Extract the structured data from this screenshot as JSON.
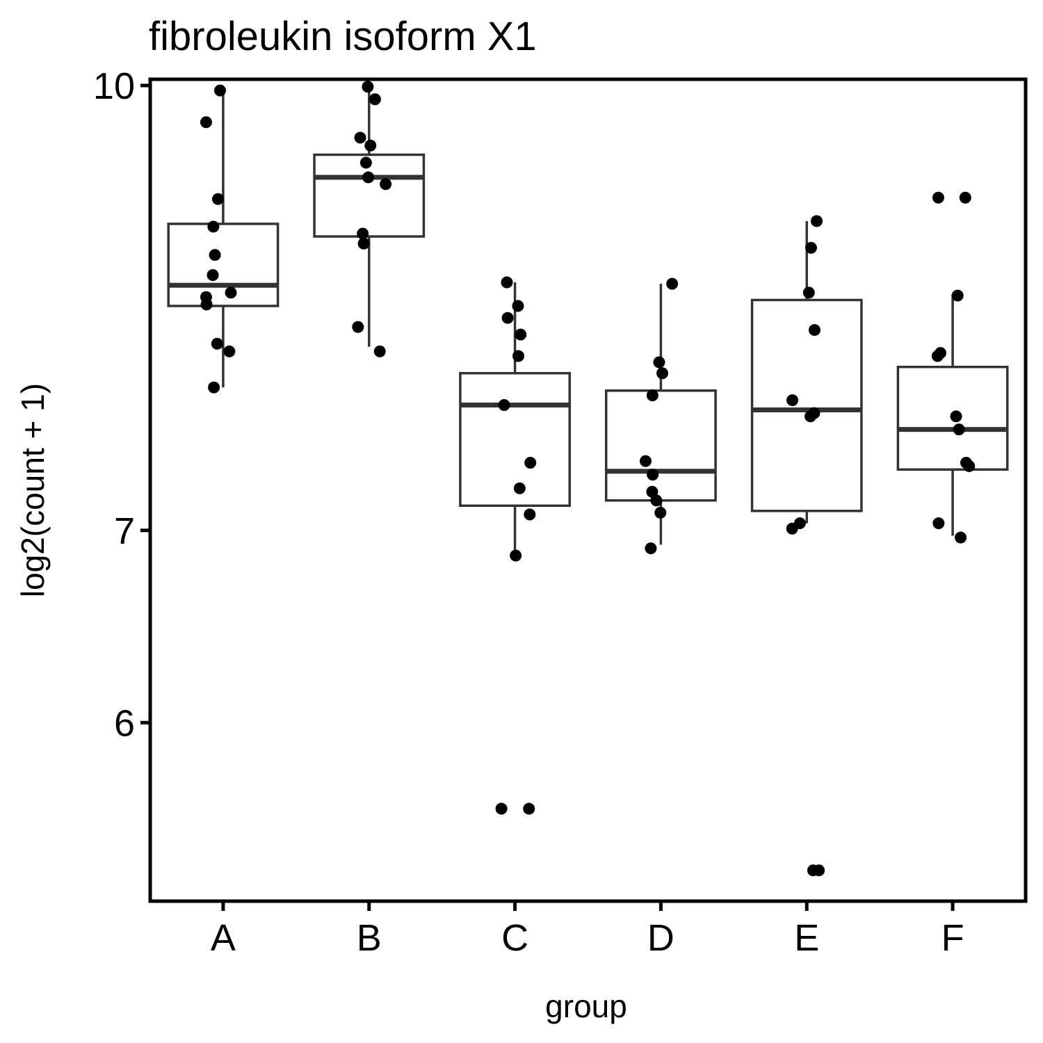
{
  "chart_data": {
    "type": "boxplot",
    "title": "fibroleukin isoform X1",
    "xlabel": "group",
    "ylabel": "log2(count + 1)",
    "y_scale": "log",
    "yticks": [
      6,
      7,
      10
    ],
    "ylim": [
      5.2,
      10.05
    ],
    "grid": false,
    "legend": "none",
    "colors": {
      "box": "#333333",
      "point": "#000000",
      "frame": "#000000"
    },
    "categories": [
      "A",
      "B",
      "C",
      "D",
      "E",
      "F"
    ],
    "boxes": [
      {
        "group": "A",
        "whisker_low": 7.85,
        "q1": 8.38,
        "median": 8.52,
        "q3": 8.95,
        "whisker_high": 9.95
      },
      {
        "group": "B",
        "whisker_low": 8.11,
        "q1": 8.86,
        "median": 9.29,
        "q3": 9.46,
        "whisker_high": 10.0
      },
      {
        "group": "C",
        "whisker_low": 6.89,
        "q1": 7.14,
        "median": 7.74,
        "q3": 7.94,
        "whisker_high": 8.54
      },
      {
        "group": "D",
        "whisker_low": 6.92,
        "q1": 7.17,
        "median": 7.34,
        "q3": 7.83,
        "whisker_high": 8.53
      },
      {
        "group": "E",
        "whisker_low": 7.04,
        "q1": 7.11,
        "median": 7.71,
        "q3": 8.42,
        "whisker_high": 8.97
      },
      {
        "group": "F",
        "whisker_low": 6.97,
        "q1": 7.35,
        "median": 7.59,
        "q3": 7.98,
        "whisker_high": 8.46
      }
    ],
    "points": [
      {
        "group": "A",
        "values": [
          9.96,
          9.71,
          9.13,
          8.93,
          8.73,
          8.59,
          8.47,
          8.44,
          8.39,
          8.13,
          8.08,
          7.85
        ]
      },
      {
        "group": "B",
        "values": [
          9.99,
          9.89,
          9.59,
          9.53,
          9.4,
          9.29,
          9.24,
          8.88,
          8.81,
          8.24,
          8.08
        ]
      },
      {
        "group": "C",
        "values": [
          8.54,
          8.38,
          8.3,
          8.19,
          8.05,
          7.74,
          7.39,
          7.24,
          7.09,
          6.86,
          5.6,
          5.6
        ]
      },
      {
        "group": "D",
        "values": [
          8.53,
          8.01,
          7.94,
          7.8,
          7.4,
          7.32,
          7.22,
          7.17,
          7.1,
          6.9
        ]
      },
      {
        "group": "E",
        "values": [
          8.97,
          8.78,
          8.47,
          8.22,
          7.77,
          7.69,
          7.67,
          7.04,
          7.01,
          5.33,
          5.33
        ]
      },
      {
        "group": "F",
        "values": [
          9.14,
          9.14,
          8.45,
          8.07,
          8.05,
          7.67,
          7.59,
          7.39,
          7.37,
          7.04,
          6.96
        ]
      }
    ]
  }
}
